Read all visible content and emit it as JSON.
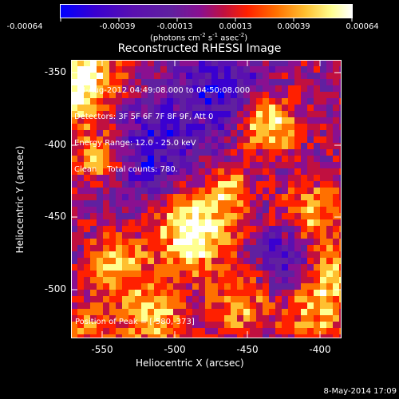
{
  "colorbar": {
    "tick_labels": [
      "-0.00064",
      "-0.00039",
      "-0.00013",
      "0.00013",
      "0.00039",
      "0.00064"
    ],
    "unit_text": "(photons cm",
    "unit_sup1": "-2",
    "unit_mid": " s",
    "unit_sup2": "-1",
    "unit_end": " asec",
    "unit_sup3": "-2",
    "unit_close": ")"
  },
  "title": "Reconstructed RHESSI Image",
  "plot": {
    "ylabel": "Heliocentric Y (arcsec)",
    "xlabel": "Heliocentric X (arcsec)",
    "y_ticks": [
      "-350",
      "-400",
      "-450",
      "-500"
    ],
    "x_ticks": [
      "-550",
      "-500",
      "-450",
      "-400"
    ]
  },
  "info": {
    "line1": "4-Aug-2012 04:49:08.000 to 04:50:08.000",
    "line2": "Detectors: 3F 5F 6F 7F 8F 9F, Att 0",
    "line3": "Energy Range: 12.0 - 25.0 keV",
    "line4": "Clean    Total counts: 780."
  },
  "peak": "Position of Peak = [-580,-373]",
  "footer": "8-May-2014 17:09",
  "colors": {
    "colormap": [
      "#0000ff",
      "#3a00d0",
      "#5a10b0",
      "#6020a0",
      "#8a1090",
      "#c01040",
      "#ff2000",
      "#ff7000",
      "#ffc030",
      "#ffff90",
      "#ffffff"
    ]
  }
}
